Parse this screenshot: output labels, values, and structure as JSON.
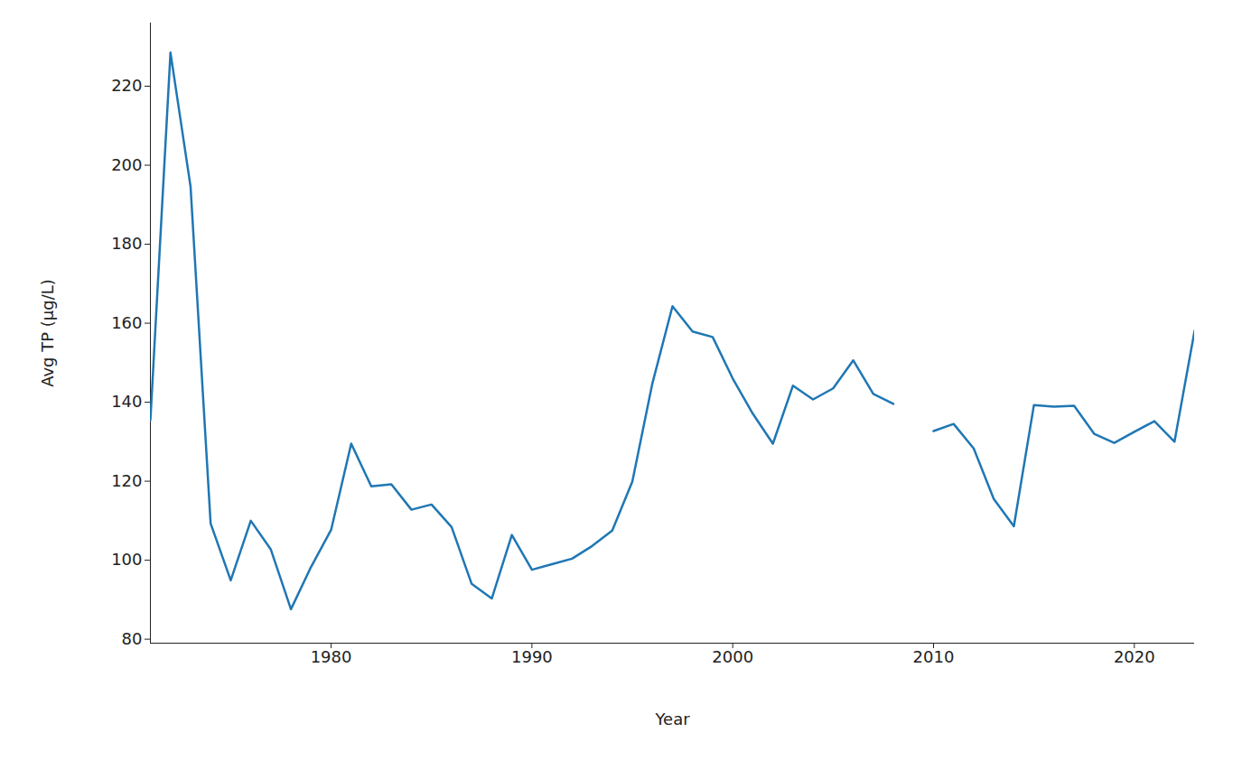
{
  "chart_data": {
    "type": "line",
    "x_label": "Year",
    "y_label": "Avg TP (µg/L)",
    "color": "#1f77b4",
    "grid": false,
    "x": [
      1971,
      1972,
      1973,
      1974,
      1975,
      1976,
      1977,
      1978,
      1979,
      1980,
      1981,
      1982,
      1983,
      1984,
      1985,
      1986,
      1987,
      1988,
      1989,
      1990,
      1991,
      1992,
      1993,
      1994,
      1995,
      1996,
      1997,
      1998,
      1999,
      2000,
      2001,
      2002,
      2003,
      2004,
      2005,
      2006,
      2007,
      2008,
      2009,
      2010,
      2011,
      2012,
      2013,
      2014,
      2015,
      2016,
      2017,
      2018,
      2019,
      2020,
      2021,
      2022,
      2023
    ],
    "values": [
      135.5,
      228.5,
      194.6,
      109.3,
      94.9,
      110,
      102.7,
      87.6,
      98.3,
      107.7,
      129.5,
      118.7,
      119.2,
      112.8,
      114.1,
      108.4,
      94,
      90.3,
      106.4,
      97.6,
      99,
      100.4,
      103.6,
      107.5,
      119.9,
      144.8,
      164.3,
      157.9,
      156.5,
      146,
      137.1,
      129.5,
      144.2,
      140.7,
      143.5,
      150.6,
      142.1,
      139.6,
      null,
      132.7,
      134.5,
      128.3,
      115.5,
      108.6,
      139.3,
      138.9,
      139.1,
      132,
      129.7,
      132.5,
      135.2,
      130,
      158.1
    ],
    "xlim": [
      1971,
      2023
    ],
    "xticks": [
      1980,
      1990,
      2000,
      2010,
      2020
    ],
    "ylim": [
      79,
      236
    ],
    "yticks": [
      80,
      100,
      120,
      140,
      160,
      180,
      200,
      220
    ]
  }
}
